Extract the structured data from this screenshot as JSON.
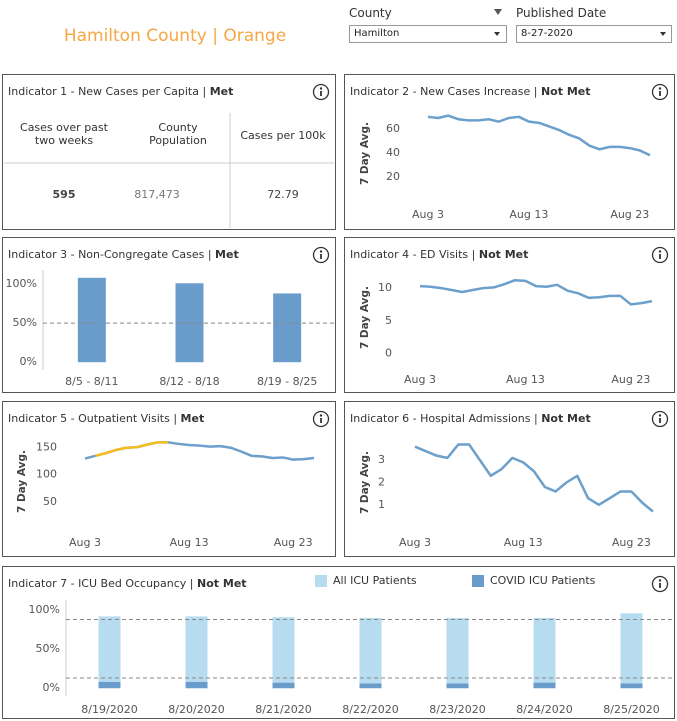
{
  "header": {
    "title": "Hamilton County | Orange",
    "filters": [
      {
        "label": "County",
        "value": "Hamilton"
      },
      {
        "label": "Published Date",
        "value": "8-27-2020"
      }
    ]
  },
  "table": {
    "title": "Indicator 1 - New Cases per Capita |",
    "status": "Met",
    "headers": [
      "Cases over past two weeks",
      "County Population",
      "Cases per 100k"
    ],
    "values": [
      "595",
      "817,473",
      "72.79"
    ]
  },
  "chart_data": [
    {
      "type": "line",
      "title": "Indicator 2 - New Cases Increase |",
      "status": "Not Met",
      "y_label": "7 Day Avg.",
      "categories": [
        "Aug 3",
        null,
        null,
        null,
        null,
        null,
        null,
        null,
        null,
        null,
        "Aug 13",
        null,
        null,
        null,
        null,
        null,
        null,
        null,
        null,
        null,
        "Aug 23",
        null,
        null
      ],
      "series": [
        {
          "color": "#6b9fcc",
          "values": [
            70,
            69,
            71,
            68,
            67,
            67,
            68,
            66,
            69,
            70,
            66,
            65,
            62,
            59,
            55,
            52,
            46,
            43,
            45,
            45,
            44,
            42,
            38
          ]
        }
      ],
      "ylim": [
        5,
        74
      ],
      "yticks": [
        20,
        40,
        60
      ]
    },
    {
      "type": "bar",
      "title": "Indicator 3 - Non-Congregate Cases |",
      "status": "Met",
      "categories": [
        "8/5 - 8/11",
        "8/12 - 8/18",
        "8/19 - 8/25"
      ],
      "values": [
        108,
        101,
        88
      ],
      "color": "#6a9ccb",
      "ylim": [
        -10,
        118
      ],
      "yticks": [
        {
          "value": 0,
          "label": "0%"
        },
        {
          "value": 50,
          "label": "50%"
        },
        {
          "value": 100,
          "label": "100%"
        }
      ],
      "reference_lines": [
        50
      ]
    },
    {
      "type": "line",
      "title": "Indicator 4 - ED Visits |",
      "status": "Not Met",
      "y_label": "7 Day Avg.",
      "categories": [
        "Aug 3",
        null,
        null,
        null,
        null,
        null,
        null,
        null,
        null,
        null,
        "Aug 13",
        null,
        null,
        null,
        null,
        null,
        null,
        null,
        null,
        null,
        "Aug 23",
        null,
        null
      ],
      "series": [
        {
          "color": "#6b9fcc",
          "values": [
            10.3,
            10.2,
            10.0,
            9.7,
            9.4,
            9.7,
            10.0,
            10.1,
            10.6,
            11.2,
            11.1,
            10.3,
            10.2,
            10.5,
            9.6,
            9.2,
            8.5,
            8.6,
            8.8,
            8.8,
            7.5,
            7.7,
            8.0
          ]
        }
      ],
      "ylim": [
        -1,
        12
      ],
      "yticks": [
        0,
        5,
        10
      ]
    },
    {
      "type": "line",
      "title": "Indicator 5 - Outpatient Visits |",
      "status": "Met",
      "y_label": "7 Day Avg.",
      "categories": [
        "Aug 3",
        null,
        null,
        null,
        null,
        null,
        null,
        null,
        null,
        null,
        "Aug 13",
        null,
        null,
        null,
        null,
        null,
        null,
        null,
        null,
        null,
        "Aug 23",
        null,
        null
      ],
      "series": [
        {
          "color": "#6b9fcc",
          "values": [
            130,
            135,
            140,
            146,
            150,
            151,
            156,
            160,
            160,
            157,
            155,
            154,
            152,
            153,
            150,
            143,
            135,
            134,
            131,
            132,
            128,
            129,
            131
          ],
          "highlight": {
            "color": "#f5bd1f",
            "from": 1,
            "to": 8
          }
        }
      ],
      "ylim": [
        7,
        168
      ],
      "yticks": [
        50,
        100,
        150
      ]
    },
    {
      "type": "line",
      "title": "Indicator 6 - Hospital Admissions |",
      "status": "Not Met",
      "y_label": "7 Day Avg.",
      "categories": [
        "Aug 3",
        null,
        null,
        null,
        null,
        null,
        null,
        null,
        null,
        null,
        "Aug 13",
        null,
        null,
        null,
        null,
        null,
        null,
        null,
        null,
        null,
        "Aug 23",
        null,
        null
      ],
      "series": [
        {
          "color": "#6b9fcc",
          "values": [
            3.6,
            3.4,
            3.2,
            3.1,
            3.7,
            3.7,
            3.0,
            2.3,
            2.6,
            3.1,
            2.9,
            2.5,
            1.8,
            1.6,
            2.0,
            2.3,
            1.3,
            1.0,
            1.3,
            1.6,
            1.6,
            1.1,
            0.7
          ]
        }
      ],
      "ylim": [
        0.1,
        3.9
      ],
      "yticks": [
        1,
        2,
        3
      ]
    },
    {
      "type": "bar",
      "title": "Indicator 7 - ICU Bed Occupancy |",
      "status": "Not Met",
      "stacked": false,
      "legend": "top",
      "categories": [
        "8/19/2020",
        "8/20/2020",
        "8/21/2020",
        "8/22/2020",
        "8/23/2020",
        "8/24/2020",
        "8/25/2020"
      ],
      "series": [
        {
          "name": "All ICU Patients",
          "color": "#b7dcf0",
          "values": [
            92,
            92,
            91,
            90,
            90,
            90,
            96
          ]
        },
        {
          "name": "COVID ICU Patients",
          "color": "#6a9ccb",
          "values": [
            8,
            8,
            7,
            6,
            6,
            7,
            6
          ]
        }
      ],
      "ylim": [
        -10,
        113
      ],
      "yticks": [
        {
          "value": 0,
          "label": "0%"
        },
        {
          "value": 50,
          "label": "50%"
        },
        {
          "value": 100,
          "label": "100%"
        }
      ],
      "reference_lines": [
        88,
        13
      ]
    }
  ]
}
